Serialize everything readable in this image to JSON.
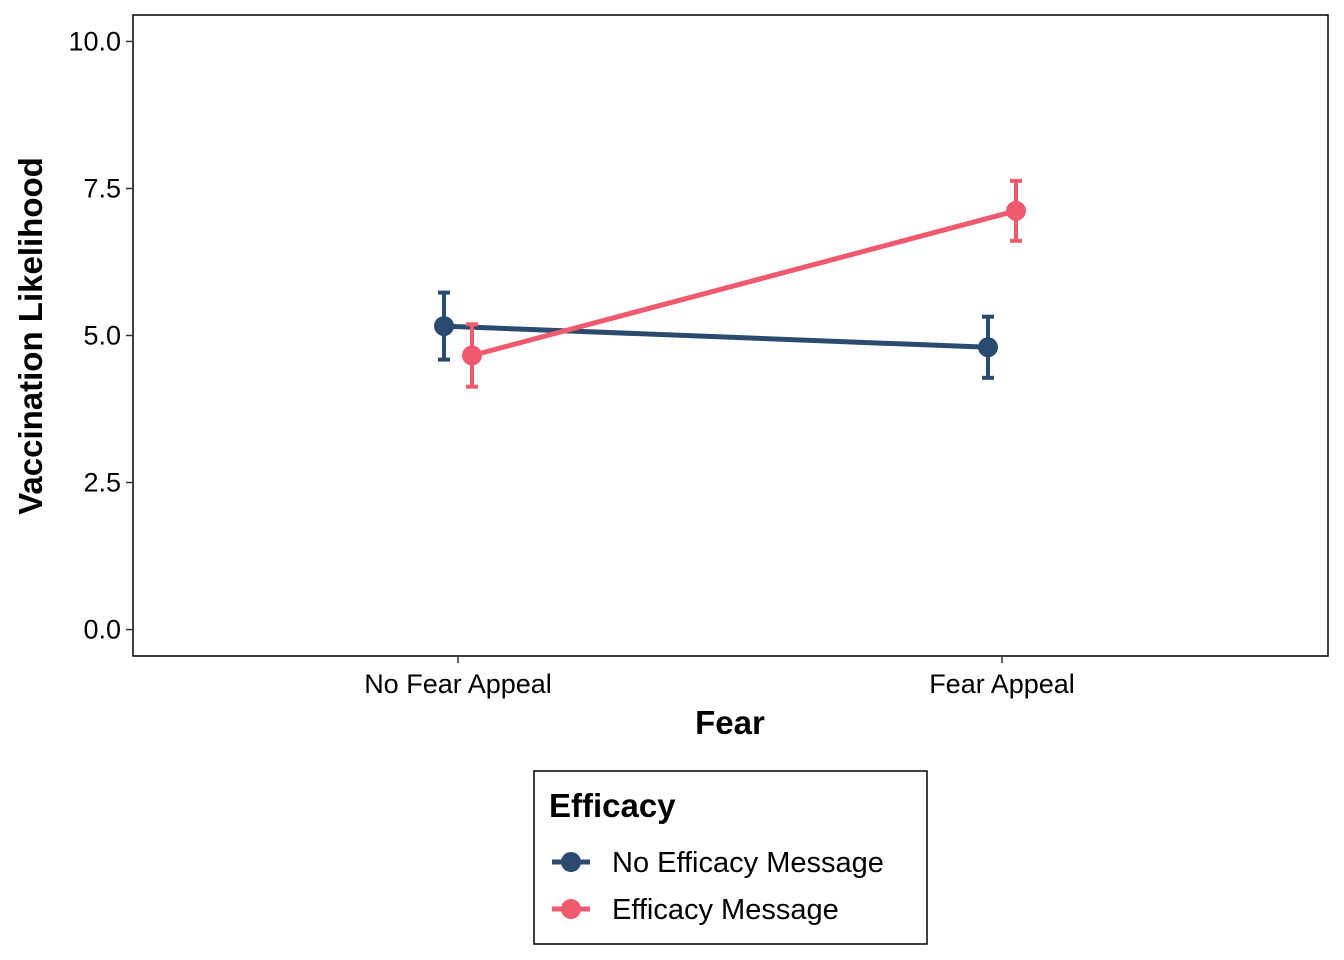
{
  "chart_data": {
    "type": "line",
    "xlabel": "Fear",
    "ylabel": "Vaccination Likelihood",
    "categories": [
      "No Fear Appeal",
      "Fear Appeal"
    ],
    "ylim": [
      -0.45,
      10.45
    ],
    "y_ticks": [
      "0.0",
      "2.5",
      "5.0",
      "7.5",
      "10.0"
    ],
    "y_tick_values": [
      0,
      2.5,
      5,
      7.5,
      10
    ],
    "grid": false,
    "legend": {
      "title": "Efficacy",
      "position": "bottom"
    },
    "series": [
      {
        "name": "No Efficacy Message",
        "color": "#2b4a6f",
        "values": [
          5.16,
          4.8
        ],
        "error_low": [
          4.59,
          4.28
        ],
        "error_high": [
          5.73,
          5.32
        ]
      },
      {
        "name": "Efficacy Message",
        "color": "#ef5a6f",
        "values": [
          4.66,
          7.12
        ],
        "error_low": [
          4.13,
          6.61
        ],
        "error_high": [
          5.19,
          7.63
        ]
      }
    ]
  }
}
